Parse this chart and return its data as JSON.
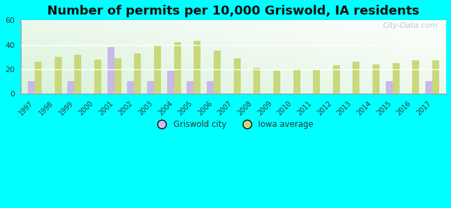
{
  "years": [
    1997,
    1998,
    1999,
    2000,
    2001,
    2002,
    2003,
    2004,
    2005,
    2006,
    2007,
    2008,
    2009,
    2010,
    2011,
    2012,
    2013,
    2014,
    2015,
    2016,
    2017
  ],
  "griswold": [
    10,
    0,
    10,
    0,
    38,
    10,
    10,
    19,
    10,
    10,
    0,
    0,
    0,
    0,
    0,
    0,
    0,
    0,
    10,
    0,
    10
  ],
  "iowa_avg": [
    26,
    30,
    32,
    28,
    29,
    33,
    40,
    42,
    43,
    35,
    29,
    21,
    19,
    20,
    20,
    23,
    26,
    24,
    25,
    27,
    27
  ],
  "griswold_color": "#c9b8e8",
  "iowa_color": "#c8d87a",
  "title": "Number of permits per 10,000 Griswold, IA residents",
  "title_fontsize": 13,
  "title_fontweight": "bold",
  "ylim": [
    0,
    60
  ],
  "yticks": [
    0,
    20,
    40,
    60
  ],
  "bg_outer": "#00ffff",
  "watermark": "City-Data.com",
  "bar_width": 0.35,
  "legend_griswold": "Griswold city",
  "legend_iowa": "Iowa average"
}
